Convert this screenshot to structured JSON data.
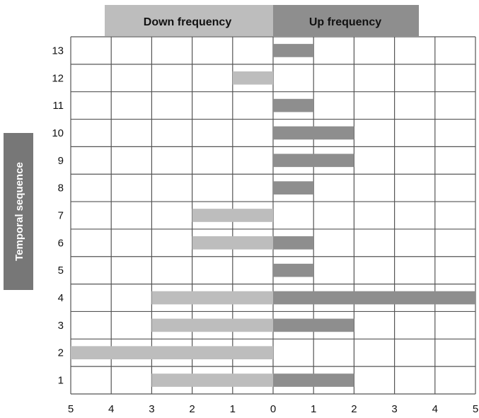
{
  "chart_data": {
    "type": "bar",
    "orientation": "horizontal",
    "layout": "diverging",
    "categories": [
      "1",
      "2",
      "3",
      "4",
      "5",
      "6",
      "7",
      "8",
      "9",
      "10",
      "11",
      "12",
      "13"
    ],
    "series": [
      {
        "name": "Down frequency",
        "color": "#bdbdbd",
        "direction": "left",
        "values": [
          3,
          5,
          3,
          3,
          0,
          2,
          2,
          0,
          0,
          0,
          0,
          1,
          0
        ]
      },
      {
        "name": "Up frequency",
        "color": "#8e8e8e",
        "direction": "right",
        "values": [
          2,
          0,
          2,
          5,
          1,
          1,
          0,
          1,
          2,
          2,
          1,
          0,
          1
        ]
      }
    ],
    "x_ticks": [
      "5",
      "4",
      "3",
      "2",
      "1",
      "0",
      "1",
      "2",
      "3",
      "4",
      "5"
    ],
    "xlim": [
      -5,
      5
    ],
    "ylabel": "Temporal sequence",
    "xlabel": "",
    "grid": true,
    "legend": "top header bands"
  }
}
